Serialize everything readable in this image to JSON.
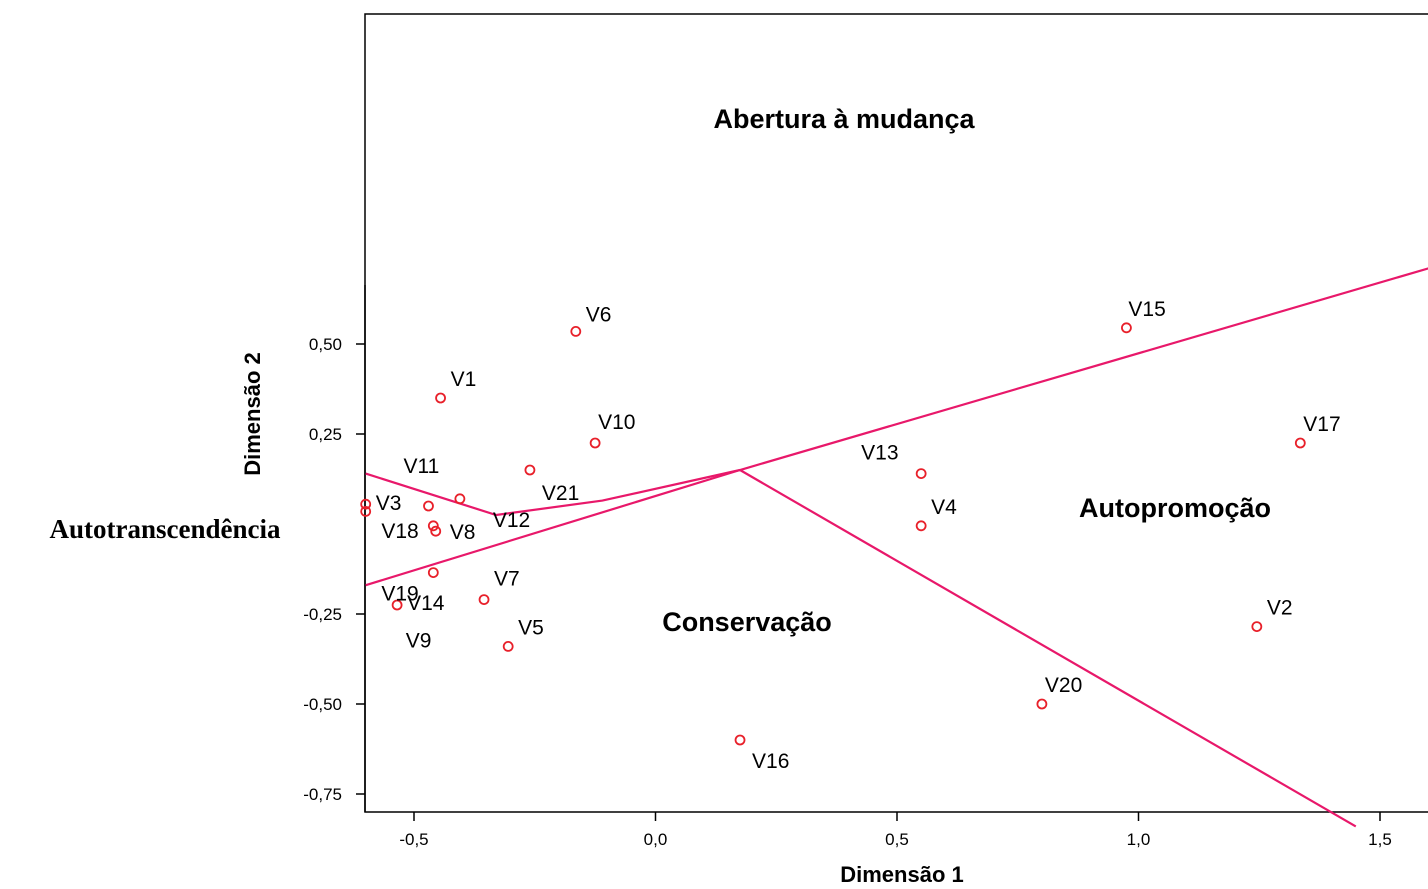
{
  "chart_data": {
    "type": "scatter",
    "xlabel": "Dimensão 1",
    "ylabel": "Dimensão 2",
    "xlim": [
      -0.6,
      1.6
    ],
    "ylim": [
      -0.8,
      0.7
    ],
    "x_ticks": [
      "-0,5",
      "0,0",
      "0,5",
      "1,0",
      "1,5"
    ],
    "y_ticks": [
      "0,50",
      "0,25",
      "-0,25",
      "-0,50",
      "-0,75"
    ],
    "x_tick_values": [
      -0.5,
      0.0,
      0.5,
      1.0,
      1.5
    ],
    "y_tick_values": [
      0.5,
      0.25,
      -0.25,
      -0.5,
      -0.75
    ],
    "marker_color": "#e8202a",
    "line_color": "#e8186a",
    "points": [
      {
        "label": "V1",
        "x": -0.445,
        "y": 0.35
      },
      {
        "label": "V2",
        "x": 1.245,
        "y": -0.285
      },
      {
        "label": "V3",
        "x": -0.6,
        "y": 0.055
      },
      {
        "label": "V4",
        "x": 0.55,
        "y": -0.005
      },
      {
        "label": "V5",
        "x": -0.305,
        "y": -0.34
      },
      {
        "label": "V6",
        "x": -0.165,
        "y": 0.535
      },
      {
        "label": "V7",
        "x": -0.355,
        "y": -0.21
      },
      {
        "label": "V8",
        "x": -0.455,
        "y": -0.02
      },
      {
        "label": "V9",
        "x": -0.6,
        "y": 0.035
      },
      {
        "label": "V10",
        "x": -0.125,
        "y": 0.225
      },
      {
        "label": "V11",
        "x": -0.47,
        "y": 0.05
      },
      {
        "label": "V12",
        "x": -0.405,
        "y": 0.07
      },
      {
        "label": "V13",
        "x": 0.55,
        "y": 0.14
      },
      {
        "label": "V14",
        "x": -0.535,
        "y": -0.225
      },
      {
        "label": "V15",
        "x": 0.975,
        "y": 0.545
      },
      {
        "label": "V16",
        "x": 0.175,
        "y": -0.6
      },
      {
        "label": "V17",
        "x": 1.335,
        "y": 0.225
      },
      {
        "label": "V18",
        "x": -0.46,
        "y": -0.005
      },
      {
        "label": "V19",
        "x": -0.46,
        "y": -0.135
      },
      {
        "label": "V20",
        "x": 0.8,
        "y": -0.5
      },
      {
        "label": "V21",
        "x": -0.26,
        "y": 0.15
      }
    ],
    "region_labels": [
      "Abertura à mudança",
      "Autotranscendência",
      "Autopromoção",
      "Conservação"
    ],
    "boundary_lines": [
      [
        [
          -0.6,
          0.14
        ],
        [
          -0.33,
          0.025
        ],
        [
          -0.11,
          0.065
        ],
        [
          0.175,
          0.15
        ],
        [
          1.6,
          0.71
        ]
      ],
      [
        [
          -0.6,
          -0.17
        ],
        [
          0.175,
          0.15
        ]
      ],
      [
        [
          0.175,
          0.15
        ],
        [
          1.45,
          -0.84
        ]
      ]
    ]
  }
}
